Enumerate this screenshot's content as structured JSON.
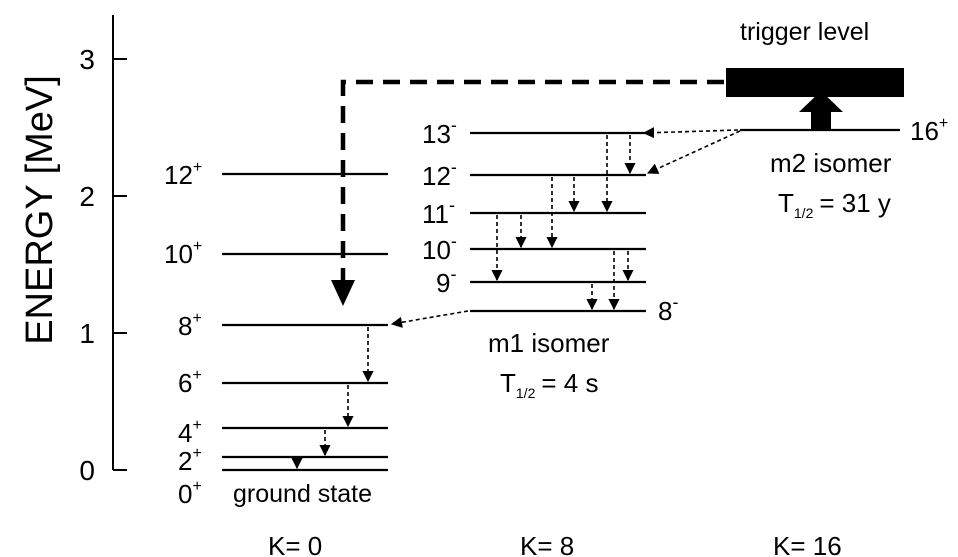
{
  "axis": {
    "label": "ENERGY [MeV]",
    "ticks": [
      "0",
      "1",
      "2",
      "3"
    ]
  },
  "bands": {
    "k0": "K= 0",
    "k8": "K= 8",
    "k16": "K= 16"
  },
  "levels": {
    "gs_0": {
      "spin": "0",
      "parity": "+"
    },
    "gs_2": {
      "spin": "2",
      "parity": "+"
    },
    "gs_4": {
      "spin": "4",
      "parity": "+"
    },
    "gs_6": {
      "spin": "6",
      "parity": "+"
    },
    "gs_8": {
      "spin": "8",
      "parity": "+"
    },
    "gs_10": {
      "spin": "10",
      "parity": "+"
    },
    "gs_12": {
      "spin": "12",
      "parity": "+"
    },
    "m1_8": {
      "spin": "8",
      "parity": "-"
    },
    "m1_9": {
      "spin": "9",
      "parity": "-"
    },
    "m1_10": {
      "spin": "10",
      "parity": "-"
    },
    "m1_11": {
      "spin": "11",
      "parity": "-"
    },
    "m1_12": {
      "spin": "12",
      "parity": "-"
    },
    "m1_13": {
      "spin": "13",
      "parity": "-"
    },
    "m2_16": {
      "spin": "16",
      "parity": "+"
    }
  },
  "annotations": {
    "ground_state": "ground state",
    "trigger": "trigger level",
    "m1_name": "m1 isomer",
    "m1_half_T": "T",
    "m1_half_sub": "1/2",
    "m1_half_val": "= 4 s",
    "m2_name": "m2 isomer",
    "m2_half_T": "T",
    "m2_half_sub": "1/2",
    "m2_half_val": "= 31 y"
  },
  "colors": {
    "ink": "#000000",
    "background": "#ffffff"
  }
}
